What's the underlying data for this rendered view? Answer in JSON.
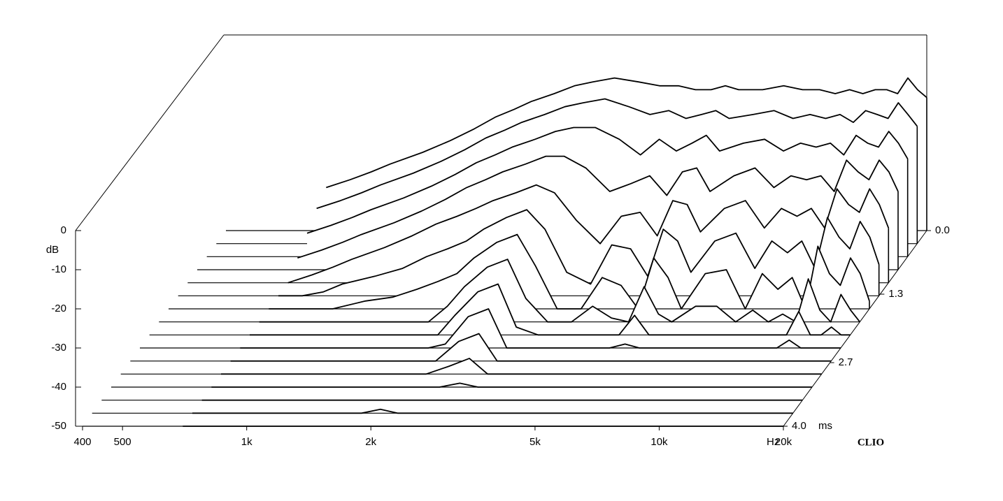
{
  "chart_data": {
    "type": "waterfall",
    "y_label": "dB",
    "x_unit": "Hz",
    "z_unit": "ms",
    "brand": "CLIO",
    "log_x": true,
    "xlim": [
      400,
      20000
    ],
    "xticks": [
      400,
      500,
      {
        "value": 1000,
        "label": "1k"
      },
      {
        "value": 2000,
        "label": "2k"
      },
      {
        "value": 5000,
        "label": "5k"
      },
      {
        "value": 10000,
        "label": "10k"
      },
      {
        "value": 20000,
        "label": "20k"
      }
    ],
    "ylim": [
      -50,
      0
    ],
    "yticks": [
      0,
      -10,
      -20,
      -30,
      -40,
      -50
    ],
    "zlim": [
      0,
      4
    ],
    "zticks": [
      {
        "value": 0,
        "label": "0.0"
      },
      1.3,
      2.7,
      {
        "value": 4,
        "label": "4.0"
      }
    ],
    "color": "#000000",
    "x": [
      700,
      800,
      900,
      1000,
      1200,
      1400,
      1600,
      1800,
      2000,
      2200,
      2500,
      2800,
      3100,
      3500,
      4000,
      4500,
      5000,
      5500,
      6000,
      6500,
      7000,
      8000,
      9000,
      10000,
      11000,
      12000,
      13000,
      14000,
      15000,
      16000,
      17000,
      18000,
      19000,
      20000
    ],
    "series": [
      {
        "z": 0,
        "values": [
          -39,
          -37,
          -35,
          -33,
          -30,
          -27,
          -24,
          -21,
          -19,
          -17,
          -15,
          -13,
          -12,
          -11,
          -12,
          -13,
          -13,
          -14,
          -14,
          -13,
          -14,
          -14,
          -13,
          -14,
          -14,
          -15,
          -14,
          -15,
          -14,
          -14,
          -15,
          -11,
          -14,
          -16
        ]
      },
      {
        "z": 0.267,
        "values": [
          -41,
          -39,
          -37,
          -35,
          -32,
          -29,
          -26,
          -23,
          -21,
          -19,
          -17,
          -15,
          -14,
          -13,
          -15,
          -17,
          -16,
          -18,
          -17,
          -16,
          -18,
          -17,
          -16,
          -18,
          -17,
          -18,
          -17,
          -19,
          -16,
          -17,
          -18,
          -14,
          -17,
          -20
        ]
      },
      {
        "z": 0.533,
        "values": [
          -44,
          -42,
          -40,
          -38,
          -35,
          -32,
          -29,
          -26,
          -24,
          -22,
          -20,
          -18,
          -17,
          -17,
          -20,
          -24,
          -20,
          -23,
          -21,
          -19,
          -23,
          -21,
          -20,
          -23,
          -21,
          -22,
          -21,
          -24,
          -19,
          -21,
          -22,
          -18,
          -21,
          -25
        ]
      },
      {
        "z": 0.8,
        "values": [
          -47,
          -45,
          -43,
          -41,
          -38,
          -35,
          -32,
          -29,
          -27,
          -25,
          -23,
          -21,
          -21,
          -24,
          -30,
          -28,
          -26,
          -31,
          -25,
          -24,
          -30,
          -26,
          -24,
          -29,
          -26,
          -27,
          -26,
          -30,
          -22,
          -25,
          -27,
          -22,
          -25,
          -30
        ]
      },
      {
        "z": 1.067,
        "values": [
          -50,
          -48,
          -46,
          -44,
          -41,
          -38,
          -35,
          -33,
          -31,
          -29,
          -27,
          -25,
          -27,
          -34,
          -40,
          -33,
          -32,
          -38,
          -29,
          -30,
          -37,
          -31,
          -29,
          -36,
          -31,
          -33,
          -31,
          -36,
          -26,
          -30,
          -32,
          -26,
          -30,
          -36
        ]
      },
      {
        "z": 1.333,
        "values": [
          -50,
          -50,
          -49,
          -47,
          -45,
          -43,
          -40,
          -38,
          -36,
          -33,
          -30,
          -28,
          -33,
          -44,
          -47,
          -37,
          -38,
          -45,
          -33,
          -36,
          -44,
          -36,
          -34,
          -43,
          -36,
          -39,
          -36,
          -43,
          -30,
          -35,
          -38,
          -31,
          -35,
          -42
        ]
      },
      {
        "z": 1.6,
        "values": [
          -50,
          -50,
          -50,
          -50,
          -48,
          -47,
          -45,
          -43,
          -41,
          -37,
          -33,
          -31,
          -39,
          -50,
          -50,
          -42,
          -44,
          -50,
          -37,
          -42,
          -50,
          -41,
          -40,
          -50,
          -41,
          -45,
          -42,
          -50,
          -34,
          -41,
          -44,
          -37,
          -41,
          -48
        ]
      },
      {
        "z": 1.867,
        "values": [
          -50,
          -50,
          -50,
          -50,
          -50,
          -50,
          -50,
          -50,
          -46,
          -41,
          -36,
          -34,
          -44,
          -50,
          -50,
          -46,
          -49,
          -50,
          -41,
          -48,
          -50,
          -46,
          -46,
          -50,
          -47,
          -50,
          -48,
          -50,
          -39,
          -47,
          -50,
          -43,
          -47,
          -50
        ]
      },
      {
        "z": 2.133,
        "values": [
          -50,
          -50,
          -50,
          -50,
          -50,
          -50,
          -50,
          -50,
          -50,
          -45,
          -39,
          -37,
          -48,
          -50,
          -50,
          -50,
          -50,
          -50,
          -45,
          -50,
          -50,
          -50,
          -50,
          -50,
          -50,
          -50,
          -50,
          -50,
          -44,
          -50,
          -50,
          -48,
          -50,
          -50
        ]
      },
      {
        "z": 2.4,
        "values": [
          -50,
          -50,
          -50,
          -50,
          -50,
          -50,
          -50,
          -50,
          -50,
          -49,
          -42,
          -40,
          -50,
          -50,
          -50,
          -50,
          -50,
          -50,
          -49,
          -50,
          -50,
          -50,
          -50,
          -50,
          -50,
          -50,
          -50,
          -50,
          -48,
          -50,
          -50,
          -50,
          -50,
          -50
        ]
      },
      {
        "z": 2.667,
        "values": [
          -50,
          -50,
          -50,
          -50,
          -50,
          -50,
          -50,
          -50,
          -50,
          -50,
          -45,
          -43,
          -50,
          -50,
          -50,
          -50,
          -50,
          -50,
          -50,
          -50,
          -50,
          -50,
          -50,
          -50,
          -50,
          -50,
          -50,
          -50,
          -50,
          -50,
          -50,
          -50,
          -50,
          -50
        ]
      },
      {
        "z": 2.933,
        "values": [
          -50,
          -50,
          -50,
          -50,
          -50,
          -50,
          -50,
          -50,
          -50,
          -50,
          -48,
          -46,
          -50,
          -50,
          -50,
          -50,
          -50,
          -50,
          -50,
          -50,
          -50,
          -50,
          -50,
          -50,
          -50,
          -50,
          -50,
          -50,
          -50,
          -50,
          -50,
          -50,
          -50,
          -50
        ]
      },
      {
        "z": 3.2,
        "values": [
          -50,
          -50,
          -50,
          -50,
          -50,
          -50,
          -50,
          -50,
          -50,
          -50,
          -50,
          -49,
          -50,
          -50,
          -50,
          -50,
          -50,
          -50,
          -50,
          -50,
          -50,
          -50,
          -50,
          -50,
          -50,
          -50,
          -50,
          -50,
          -50,
          -50,
          -50,
          -50,
          -50,
          -50
        ]
      },
      {
        "z": 3.467,
        "values": [
          -50,
          -50,
          -50,
          -50,
          -50,
          -50,
          -50,
          -50,
          -50,
          -50,
          -50,
          -50,
          -50,
          -50,
          -50,
          -50,
          -50,
          -50,
          -50,
          -50,
          -50,
          -50,
          -50,
          -50,
          -50,
          -50,
          -50,
          -50,
          -50,
          -50,
          -50,
          -50,
          -50,
          -50
        ]
      },
      {
        "z": 3.733,
        "values": [
          -50,
          -50,
          -50,
          -50,
          -50,
          -50,
          -50,
          -50,
          -49,
          -50,
          -50,
          -50,
          -50,
          -50,
          -50,
          -50,
          -50,
          -50,
          -50,
          -50,
          -50,
          -50,
          -50,
          -50,
          -50,
          -50,
          -50,
          -50,
          -50,
          -50,
          -50,
          -50,
          -50,
          -50
        ]
      },
      {
        "z": 4,
        "values": [
          -50,
          -50,
          -50,
          -50,
          -50,
          -50,
          -50,
          -50,
          -50,
          -50,
          -50,
          -50,
          -50,
          -50,
          -50,
          -50,
          -50,
          -50,
          -50,
          -50,
          -50,
          -50,
          -50,
          -50,
          -50,
          -50,
          -50,
          -50,
          -50,
          -50,
          -50,
          -50,
          -50,
          -50
        ]
      }
    ]
  }
}
